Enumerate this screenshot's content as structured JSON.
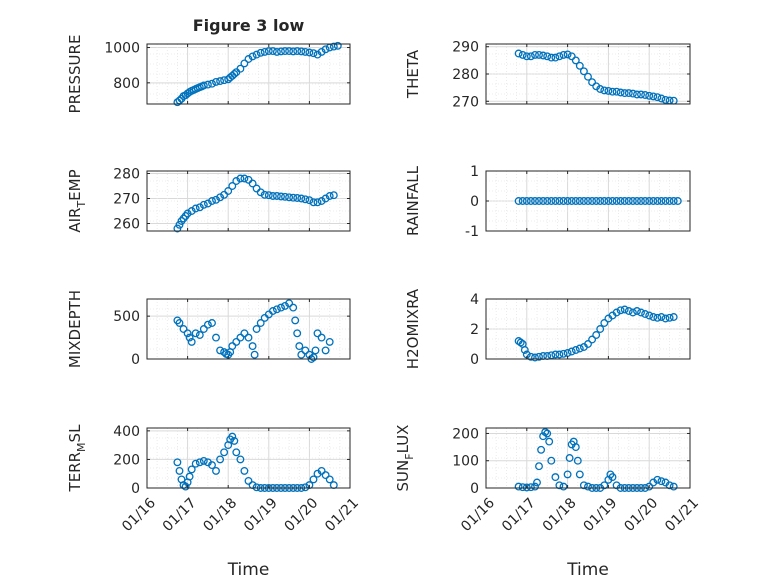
{
  "colors": {
    "marker": "#0072BD",
    "axis": "#262626",
    "grid": "#d9d9d9"
  },
  "chart_data": [
    {
      "type": "scatter",
      "title": "Figure 3 low",
      "ylabel": "PRESSURE",
      "xlabel": "",
      "xlim": [
        0,
        5
      ],
      "ylim": [
        680,
        1020
      ],
      "yticks": [
        800,
        1000
      ],
      "grid": true,
      "series": [
        {
          "x": [
            0.75,
            0.8,
            0.85,
            0.9,
            0.95,
            1.0,
            1.05,
            1.1,
            1.15,
            1.2,
            1.25,
            1.3,
            1.35,
            1.4,
            1.5,
            1.6,
            1.7,
            1.8,
            1.9,
            2.0,
            2.05,
            2.1,
            2.15,
            2.2,
            2.3,
            2.4,
            2.5,
            2.6,
            2.7,
            2.8,
            2.9,
            3.0,
            3.1,
            3.2,
            3.3,
            3.4,
            3.5,
            3.6,
            3.7,
            3.8,
            3.9,
            4.0,
            4.1,
            4.2,
            4.3,
            4.4,
            4.5,
            4.6,
            4.7
          ],
          "y": [
            690,
            700,
            710,
            725,
            730,
            740,
            748,
            755,
            760,
            765,
            770,
            775,
            780,
            785,
            790,
            795,
            805,
            810,
            815,
            820,
            830,
            840,
            850,
            860,
            880,
            910,
            935,
            950,
            960,
            970,
            975,
            980,
            980,
            975,
            978,
            980,
            980,
            978,
            980,
            978,
            975,
            972,
            968,
            960,
            975,
            990,
            1000,
            1005,
            1010
          ]
        }
      ]
    },
    {
      "type": "scatter",
      "ylabel": "THETA",
      "xlim": [
        0,
        5
      ],
      "ylim": [
        269,
        291
      ],
      "yticks": [
        270,
        280,
        290
      ],
      "grid": true,
      "series": [
        {
          "x": [
            0.8,
            0.9,
            1.0,
            1.1,
            1.2,
            1.3,
            1.4,
            1.5,
            1.6,
            1.7,
            1.8,
            1.9,
            2.0,
            2.1,
            2.2,
            2.3,
            2.4,
            2.5,
            2.6,
            2.7,
            2.8,
            2.9,
            3.0,
            3.1,
            3.2,
            3.3,
            3.4,
            3.5,
            3.6,
            3.7,
            3.8,
            3.9,
            4.0,
            4.1,
            4.2,
            4.3,
            4.4,
            4.5,
            4.6
          ],
          "y": [
            287.5,
            287,
            286.5,
            286.5,
            287,
            287,
            286.8,
            286.5,
            286,
            286,
            286.5,
            287,
            287.2,
            286.5,
            285,
            283,
            281,
            279,
            277,
            275.5,
            274.5,
            274,
            273.8,
            273.5,
            273.5,
            273.2,
            273,
            273,
            272.8,
            272.5,
            272.5,
            272.3,
            272,
            271.8,
            271.5,
            271,
            270.5,
            270.3,
            270.2
          ]
        }
      ]
    },
    {
      "type": "scatter",
      "ylabel": "AIR_TEMP",
      "xlim": [
        0,
        5
      ],
      "ylim": [
        257,
        281
      ],
      "yticks": [
        260,
        270,
        280
      ],
      "grid": true,
      "series": [
        {
          "x": [
            0.75,
            0.8,
            0.85,
            0.9,
            0.95,
            1.0,
            1.1,
            1.2,
            1.3,
            1.4,
            1.5,
            1.6,
            1.7,
            1.8,
            1.9,
            2.0,
            2.1,
            2.2,
            2.3,
            2.4,
            2.5,
            2.6,
            2.7,
            2.8,
            2.9,
            3.0,
            3.1,
            3.2,
            3.3,
            3.4,
            3.5,
            3.6,
            3.7,
            3.8,
            3.9,
            4.0,
            4.1,
            4.2,
            4.3,
            4.4,
            4.5,
            4.6
          ],
          "y": [
            258,
            259.5,
            261,
            262,
            263,
            264,
            265,
            266,
            266.5,
            267.5,
            268,
            269,
            269.5,
            270.5,
            271.5,
            273,
            275,
            277,
            278,
            278,
            277.5,
            276,
            274,
            272.5,
            271.5,
            271.3,
            271,
            271,
            270.8,
            270.7,
            270.5,
            270.3,
            270.2,
            270,
            269.7,
            269.3,
            268.5,
            268.5,
            269,
            270,
            271,
            271.3
          ]
        }
      ]
    },
    {
      "type": "scatter",
      "ylabel": "RAINFALL",
      "xlim": [
        0,
        5
      ],
      "ylim": [
        -1,
        1
      ],
      "yticks": [
        -1,
        0,
        1
      ],
      "grid": true,
      "series": [
        {
          "x": [
            0.8,
            0.9,
            1.0,
            1.1,
            1.2,
            1.3,
            1.4,
            1.5,
            1.6,
            1.7,
            1.8,
            1.9,
            2.0,
            2.1,
            2.2,
            2.3,
            2.4,
            2.5,
            2.6,
            2.7,
            2.8,
            2.9,
            3.0,
            3.1,
            3.2,
            3.3,
            3.4,
            3.5,
            3.6,
            3.7,
            3.8,
            3.9,
            4.0,
            4.1,
            4.2,
            4.3,
            4.4,
            4.5,
            4.6,
            4.7
          ],
          "y": [
            0,
            0,
            0,
            0,
            0,
            0,
            0,
            0,
            0,
            0,
            0,
            0,
            0,
            0,
            0,
            0,
            0,
            0,
            0,
            0,
            0,
            0,
            0,
            0,
            0,
            0,
            0,
            0,
            0,
            0,
            0,
            0,
            0,
            0,
            0,
            0,
            0,
            0,
            0,
            0
          ]
        }
      ]
    },
    {
      "type": "scatter",
      "ylabel": "MIXDEPTH",
      "xlim": [
        0,
        5
      ],
      "ylim": [
        0,
        700
      ],
      "yticks": [
        0,
        500
      ],
      "grid": true,
      "series": [
        {
          "x": [
            0.75,
            0.8,
            0.9,
            1.0,
            1.05,
            1.1,
            1.2,
            1.3,
            1.4,
            1.5,
            1.6,
            1.7,
            1.8,
            1.9,
            1.95,
            2.0,
            2.05,
            2.1,
            2.2,
            2.3,
            2.4,
            2.5,
            2.6,
            2.65,
            2.7,
            2.8,
            2.9,
            3.0,
            3.1,
            3.2,
            3.3,
            3.4,
            3.5,
            3.6,
            3.65,
            3.7,
            3.75,
            3.8,
            3.9,
            4.0,
            4.05,
            4.1,
            4.15,
            4.2,
            4.3,
            4.4,
            4.5
          ],
          "y": [
            450,
            420,
            350,
            300,
            250,
            200,
            300,
            280,
            350,
            400,
            420,
            250,
            100,
            80,
            60,
            50,
            80,
            150,
            200,
            250,
            300,
            250,
            150,
            50,
            350,
            420,
            480,
            520,
            560,
            580,
            600,
            620,
            650,
            600,
            450,
            300,
            150,
            50,
            100,
            50,
            0,
            20,
            100,
            300,
            250,
            100,
            200
          ]
        }
      ]
    },
    {
      "type": "scatter",
      "ylabel": "H2OMIXRA",
      "xlim": [
        0,
        5
      ],
      "ylim": [
        0,
        4
      ],
      "yticks": [
        0,
        2,
        4
      ],
      "grid": true,
      "series": [
        {
          "x": [
            0.8,
            0.85,
            0.9,
            0.95,
            1.0,
            1.1,
            1.2,
            1.3,
            1.4,
            1.5,
            1.6,
            1.7,
            1.8,
            1.9,
            2.0,
            2.1,
            2.2,
            2.3,
            2.4,
            2.5,
            2.6,
            2.7,
            2.8,
            2.9,
            3.0,
            3.1,
            3.2,
            3.3,
            3.4,
            3.5,
            3.6,
            3.7,
            3.8,
            3.9,
            4.0,
            4.1,
            4.2,
            4.3,
            4.4,
            4.5,
            4.6
          ],
          "y": [
            1.2,
            1.1,
            1.0,
            0.6,
            0.3,
            0.15,
            0.1,
            0.15,
            0.2,
            0.2,
            0.25,
            0.3,
            0.3,
            0.35,
            0.4,
            0.5,
            0.6,
            0.7,
            0.8,
            1.0,
            1.3,
            1.6,
            2.0,
            2.4,
            2.7,
            2.9,
            3.1,
            3.25,
            3.3,
            3.2,
            3.1,
            3.2,
            3.1,
            3.0,
            2.9,
            2.8,
            2.75,
            2.8,
            2.7,
            2.75,
            2.8
          ]
        }
      ]
    },
    {
      "type": "scatter",
      "ylabel": "TERR_MSL",
      "xlabel": "Time",
      "xlim": [
        0,
        5
      ],
      "ylim": [
        0,
        420
      ],
      "yticks": [
        0,
        200,
        400
      ],
      "xticks": [
        "01/16",
        "01/17",
        "01/18",
        "01/19",
        "01/20",
        "01/21"
      ],
      "grid": true,
      "series": [
        {
          "x": [
            0.75,
            0.8,
            0.85,
            0.9,
            0.95,
            1.0,
            1.05,
            1.1,
            1.2,
            1.3,
            1.4,
            1.5,
            1.6,
            1.7,
            1.8,
            1.9,
            2.0,
            2.05,
            2.1,
            2.15,
            2.2,
            2.3,
            2.4,
            2.5,
            2.6,
            2.7,
            2.8,
            2.9,
            3.0,
            3.1,
            3.2,
            3.3,
            3.4,
            3.5,
            3.6,
            3.7,
            3.8,
            3.9,
            4.0,
            4.1,
            4.2,
            4.3,
            4.4,
            4.5,
            4.6
          ],
          "y": [
            180,
            120,
            60,
            20,
            10,
            40,
            80,
            130,
            170,
            180,
            190,
            180,
            160,
            120,
            200,
            250,
            300,
            340,
            360,
            330,
            250,
            200,
            120,
            50,
            20,
            5,
            0,
            0,
            0,
            0,
            0,
            0,
            0,
            0,
            0,
            0,
            0,
            5,
            20,
            60,
            100,
            120,
            90,
            60,
            20
          ]
        }
      ]
    },
    {
      "type": "scatter",
      "ylabel": "SUN_FLUX",
      "xlabel": "Time",
      "xlim": [
        0,
        5
      ],
      "ylim": [
        0,
        220
      ],
      "yticks": [
        0,
        100,
        200
      ],
      "xticks": [
        "01/16",
        "01/17",
        "01/18",
        "01/19",
        "01/20",
        "01/21"
      ],
      "grid": true,
      "series": [
        {
          "x": [
            0.8,
            0.9,
            1.0,
            1.1,
            1.2,
            1.25,
            1.3,
            1.35,
            1.4,
            1.45,
            1.5,
            1.55,
            1.6,
            1.7,
            1.8,
            1.9,
            2.0,
            2.05,
            2.1,
            2.15,
            2.2,
            2.25,
            2.3,
            2.4,
            2.5,
            2.6,
            2.7,
            2.8,
            2.9,
            3.0,
            3.05,
            3.1,
            3.2,
            3.3,
            3.4,
            3.5,
            3.6,
            3.7,
            3.8,
            3.9,
            4.0,
            4.1,
            4.2,
            4.3,
            4.4,
            4.5,
            4.6
          ],
          "y": [
            5,
            3,
            2,
            3,
            5,
            20,
            80,
            140,
            190,
            205,
            200,
            170,
            100,
            40,
            10,
            5,
            50,
            110,
            160,
            170,
            150,
            100,
            50,
            10,
            5,
            0,
            0,
            0,
            10,
            30,
            50,
            40,
            10,
            0,
            0,
            0,
            0,
            0,
            0,
            0,
            5,
            20,
            30,
            25,
            20,
            10,
            5
          ]
        }
      ]
    }
  ]
}
